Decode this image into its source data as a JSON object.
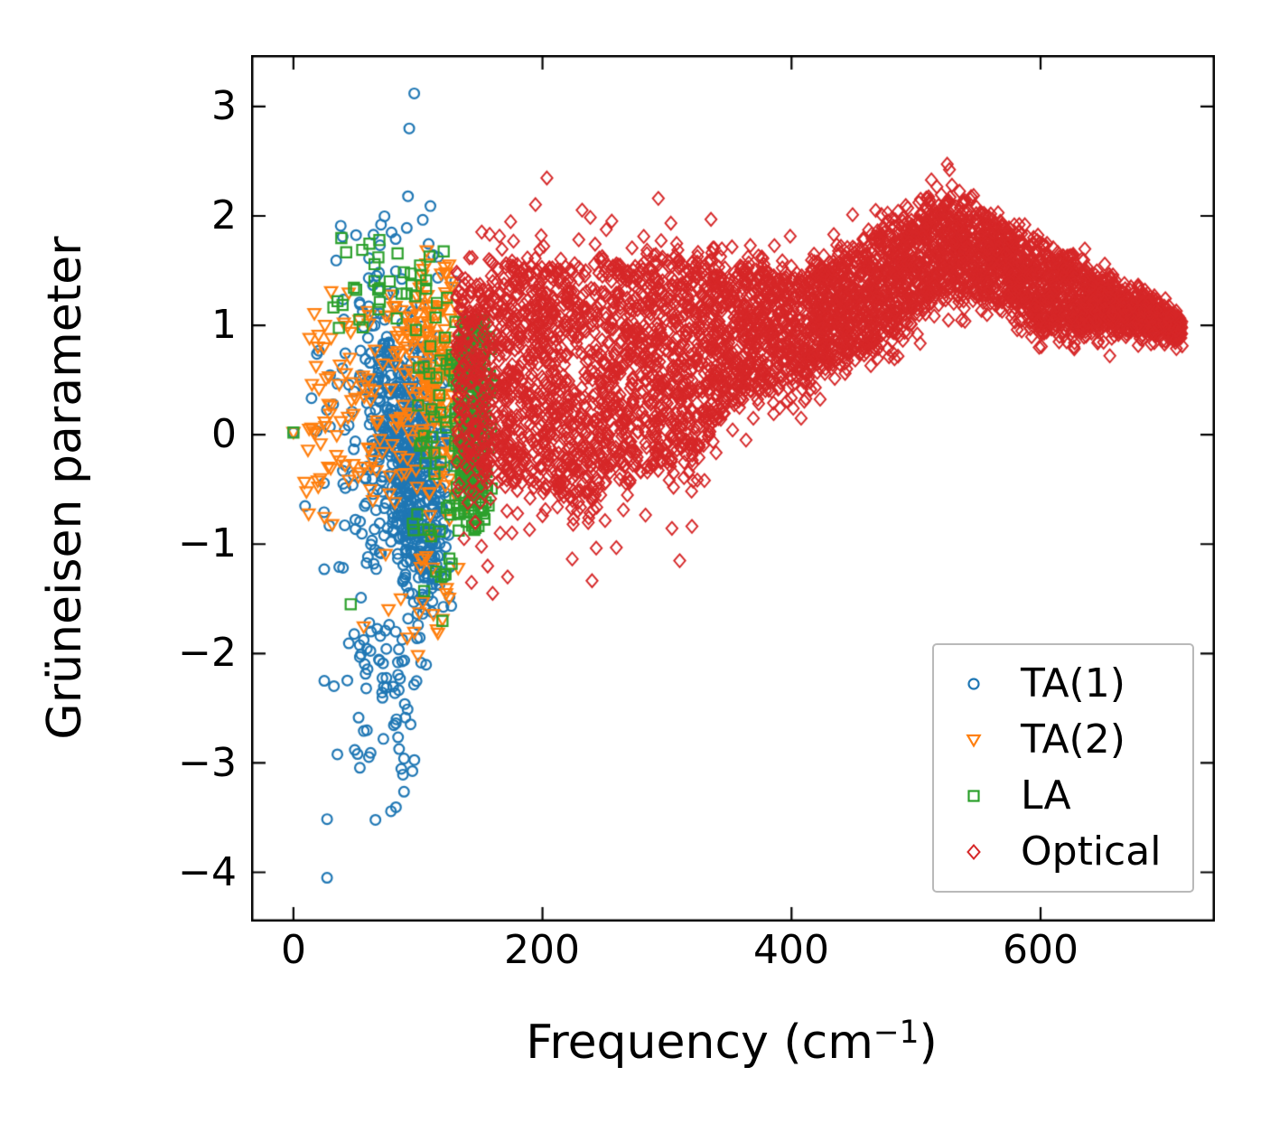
{
  "chart_data": {
    "type": "scatter",
    "title": "",
    "xlabel_parts": {
      "main": "Frequency (cm",
      "sup": "−1",
      "close": ")"
    },
    "ylabel": "Grüneisen parameter",
    "xlim": [
      -34,
      740
    ],
    "ylim": [
      -4.45,
      3.47
    ],
    "grid": false,
    "legend_position": "lower right",
    "background": "#ffffff",
    "axis_color": "#000000",
    "seed": 7,
    "x_ticks": [
      {
        "value": 0,
        "label": "0"
      },
      {
        "value": 200,
        "label": "200"
      },
      {
        "value": 400,
        "label": "400"
      },
      {
        "value": 600,
        "label": "600"
      }
    ],
    "y_ticks": [
      {
        "value": 3,
        "label": "3"
      },
      {
        "value": 2,
        "label": "2"
      },
      {
        "value": 1,
        "label": "1"
      },
      {
        "value": 0,
        "label": "0"
      },
      {
        "value": -1,
        "label": "−1"
      },
      {
        "value": -2,
        "label": "−2"
      },
      {
        "value": -3,
        "label": "−3"
      },
      {
        "value": -4,
        "label": "−4"
      }
    ],
    "series": [
      {
        "name": "TA(1)",
        "marker": "circle",
        "color": "#1f77b4",
        "clusters": [
          {
            "n": 520,
            "x": {
              "dist": "gauss",
              "mean": 95,
              "sd": 16,
              "clip": [
                40,
                128
              ]
            },
            "y": {
              "dist": "gauss",
              "sd": 0.6,
              "center": [
                [
                  40,
                  0.75
                ],
                [
                  128,
                  -0.95
                ]
              ],
              "clip": [
                -1.7,
                1.4
              ]
            }
          },
          {
            "n": 130,
            "x": {
              "dist": "gauss",
              "mean": 70,
              "sd": 28,
              "clip": [
                6,
                130
              ]
            },
            "y": {
              "dist": "gauss",
              "sd": 0.85,
              "mean": 0.0,
              "clip": [
                -2.1,
                1.5
              ]
            }
          },
          {
            "n": 18,
            "x": {
              "dist": "uniform",
              "min": 30,
              "max": 118
            },
            "y": {
              "dist": "uniform",
              "min": 1.4,
              "max": 2.0
            }
          },
          {
            "n": 55,
            "x": {
              "dist": "gauss",
              "mean": 80,
              "sd": 22,
              "clip": [
                18,
                112
              ]
            },
            "y": {
              "dist": "uniform",
              "min": -2.65,
              "max": -1.7
            }
          },
          {
            "n": 22,
            "x": {
              "dist": "gauss",
              "mean": 70,
              "sd": 26,
              "clip": [
                15,
                100
              ]
            },
            "y": {
              "dist": "uniform",
              "min": -3.55,
              "max": -2.65
            }
          }
        ],
        "points": [
          [
            97,
            3.12
          ],
          [
            93,
            2.8
          ],
          [
            92,
            2.18
          ],
          [
            110,
            2.09
          ],
          [
            91,
            1.89
          ],
          [
            38,
            1.91
          ],
          [
            27,
            -4.05
          ],
          [
            0,
            0.02
          ]
        ]
      },
      {
        "name": "TA(2)",
        "marker": "triangle-down",
        "color": "#ff7f0e",
        "clusters": [
          {
            "n": 180,
            "x": {
              "dist": "gauss",
              "mean": 115,
              "sd": 15,
              "clip": [
                70,
                146
              ]
            },
            "y": {
              "dist": "gauss",
              "sd": 0.55,
              "center": [
                [
                  70,
                  0.7
                ],
                [
                  146,
                  0.25
                ]
              ],
              "clip": [
                -0.8,
                1.62
              ]
            }
          },
          {
            "n": 110,
            "x": {
              "dist": "uniform",
              "min": 8,
              "max": 95
            },
            "y": {
              "dist": "gauss",
              "sd": 0.6,
              "mean": 0.35,
              "clip": [
                -1.1,
                1.5
              ]
            }
          },
          {
            "n": 22,
            "x": {
              "dist": "gauss",
              "mean": 95,
              "sd": 25,
              "clip": [
                25,
                135
              ]
            },
            "y": {
              "dist": "uniform",
              "min": -1.9,
              "max": -0.8
            }
          }
        ],
        "points": [
          [
            107,
            1.68
          ],
          [
            125,
            1.55
          ],
          [
            0,
            0.02
          ],
          [
            100,
            -2.02
          ]
        ]
      },
      {
        "name": "LA",
        "marker": "square",
        "color": "#2ca02c",
        "clusters": [
          {
            "n": 260,
            "x": {
              "dist": "gauss",
              "mean": 143,
              "sd": 8,
              "clip": [
                123,
                162
              ]
            },
            "y": {
              "dist": "uniform",
              "min": -0.88,
              "max": 1.05
            }
          },
          {
            "n": 38,
            "x": {
              "dist": "uniform",
              "min": 30,
              "max": 128
            },
            "y": {
              "dist": "gauss",
              "sd": 0.22,
              "mean": 1.35,
              "clip": [
                0.95,
                1.82
              ]
            }
          },
          {
            "n": 25,
            "x": {
              "dist": "uniform",
              "min": 100,
              "max": 126
            },
            "y": {
              "dist": "gauss",
              "sd": 0.5,
              "mean": 0.2,
              "clip": [
                -0.7,
                1.0
              ]
            }
          },
          {
            "n": 14,
            "x": {
              "dist": "gauss",
              "mean": 113,
              "sd": 9,
              "clip": [
                95,
                130
              ]
            },
            "y": {
              "dist": "gauss",
              "sd": 0.3,
              "center": [
                [
                  95,
                  -0.7
                ],
                [
                  130,
                  -1.5
                ]
              ],
              "clip": [
                -1.75,
                -0.45
              ]
            }
          }
        ],
        "points": [
          [
            0,
            0.02
          ],
          [
            69,
            1.78
          ],
          [
            46,
            -1.55
          ],
          [
            105,
            -1.43
          ]
        ]
      },
      {
        "name": "Optical",
        "marker": "diamond",
        "color": "#d62728",
        "clusters": [
          {
            "n": 5000,
            "x": {
              "dist": "uniform",
              "min": 131,
              "max": 714
            },
            "y": {
              "dist": "band",
              "center": [
                [
                  131,
                  0.5
                ],
                [
                  170,
                  0.55
                ],
                [
                  200,
                  0.55
                ],
                [
                  230,
                  0.45
                ],
                [
                  260,
                  0.55
                ],
                [
                  290,
                  0.65
                ],
                [
                  320,
                  0.72
                ],
                [
                  350,
                  0.9
                ],
                [
                  380,
                  0.98
                ],
                [
                  410,
                  1.0
                ],
                [
                  440,
                  1.15
                ],
                [
                  470,
                  1.3
                ],
                [
                  500,
                  1.55
                ],
                [
                  515,
                  1.72
                ],
                [
                  530,
                  1.75
                ],
                [
                  550,
                  1.65
                ],
                [
                  575,
                  1.5
                ],
                [
                  600,
                  1.3
                ],
                [
                  630,
                  1.25
                ],
                [
                  660,
                  1.17
                ],
                [
                  690,
                  1.08
                ],
                [
                  714,
                  0.95
                ]
              ],
              "width": [
                [
                  131,
                  0.8
                ],
                [
                  170,
                  1.0
                ],
                [
                  200,
                  1.05
                ],
                [
                  230,
                  1.08
                ],
                [
                  260,
                  1.0
                ],
                [
                  290,
                  0.95
                ],
                [
                  320,
                  0.95
                ],
                [
                  350,
                  0.62
                ],
                [
                  380,
                  0.55
                ],
                [
                  410,
                  0.5
                ],
                [
                  440,
                  0.5
                ],
                [
                  470,
                  0.5
                ],
                [
                  500,
                  0.48
                ],
                [
                  515,
                  0.46
                ],
                [
                  530,
                  0.43
                ],
                [
                  550,
                  0.4
                ],
                [
                  575,
                  0.36
                ],
                [
                  600,
                  0.37
                ],
                [
                  630,
                  0.3
                ],
                [
                  660,
                  0.2
                ],
                [
                  690,
                  0.14
                ],
                [
                  714,
                  0.07
                ]
              ],
              "jitter": 0.04,
              "edge_frac": 0.06,
              "edge_out": 0.3
            }
          }
        ],
        "points": [
          [
            140,
            -0.62
          ],
          [
            146,
            -0.8
          ],
          [
            151,
            -1.02
          ],
          [
            156,
            -1.2
          ],
          [
            160,
            -1.45
          ],
          [
            166,
            -0.9
          ],
          [
            172,
            -1.3
          ],
          [
            180,
            -0.72
          ],
          [
            190,
            -0.58
          ],
          [
            200,
            -0.74
          ],
          [
            212,
            -0.66
          ],
          [
            228,
            -0.7
          ],
          [
            240,
            -0.6
          ],
          [
            133,
            -0.45
          ],
          [
            137,
            -0.95
          ],
          [
            143,
            -1.35
          ]
        ]
      }
    ],
    "legend_entries": [
      "TA(1)",
      "TA(2)",
      "LA",
      "Optical"
    ]
  }
}
